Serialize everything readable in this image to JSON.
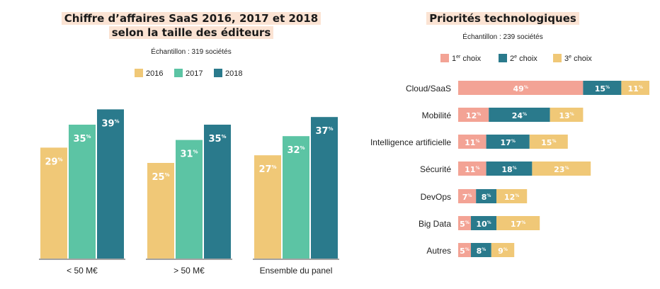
{
  "left": {
    "title_line1": "Chiffre d’affaires SaaS 2016, 2017 et 2018",
    "title_line2": "selon la taille des éditeurs",
    "sample": "Échantillon : 319 sociétés"
  },
  "right": {
    "title": "Priorités technologiques",
    "sample": "Échantillon : 239 sociétés"
  },
  "colors": {
    "y2016": "#f0c877",
    "y2017": "#5cc4a4",
    "y2018": "#2a7a8c",
    "choice1": "#f3a395",
    "choice2": "#2a7a8c",
    "choice3": "#f0c877"
  },
  "chart_data": [
    {
      "type": "bar",
      "title": "Chiffre d’affaires SaaS 2016, 2017 et 2018 selon la taille des éditeurs",
      "categories": [
        "< 50 M€",
        "> 50 M€",
        "Ensemble du panel"
      ],
      "series": [
        {
          "name": "2016",
          "values": [
            29,
            25,
            27
          ]
        },
        {
          "name": "2017",
          "values": [
            35,
            31,
            32
          ]
        },
        {
          "name": "2018",
          "values": [
            39,
            35,
            37
          ]
        }
      ],
      "unit": "%",
      "ylim": [
        0,
        40
      ],
      "legend": "top",
      "grid": false
    },
    {
      "type": "bar",
      "orientation": "horizontal",
      "stacked": true,
      "title": "Priorités technologiques",
      "categories": [
        "Cloud/SaaS",
        "Mobilité",
        "Intelligence artificielle",
        "Sécurité",
        "DevOps",
        "Big Data",
        "Autres"
      ],
      "series": [
        {
          "name": "1er choix",
          "values": [
            49,
            12,
            11,
            11,
            7,
            5,
            5
          ]
        },
        {
          "name": "2e choix",
          "values": [
            15,
            24,
            17,
            18,
            8,
            10,
            8
          ]
        },
        {
          "name": "3e choix",
          "values": [
            11,
            13,
            15,
            23,
            12,
            17,
            9
          ]
        }
      ],
      "unit": "%",
      "legend": "top",
      "grid": false
    }
  ]
}
